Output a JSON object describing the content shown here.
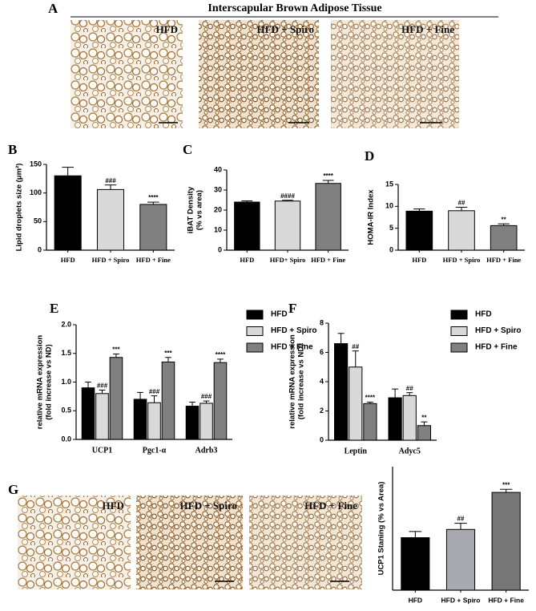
{
  "panel_a": {
    "letter": "A",
    "title": "Interscapular Brown Adipose Tissue",
    "images": [
      "HFD",
      "HFD + Spiro",
      "HFD + Fine"
    ]
  },
  "panel_g": {
    "letter": "G",
    "images": [
      "HFD",
      "HFD + Spiro",
      "HFD + Fine"
    ]
  },
  "chart_data": [
    {
      "type": "bar",
      "panel": "B",
      "ylabel": [
        "Lipid droplets size (μm²)"
      ],
      "categories": [
        "HFD",
        "HFD + Spiro",
        "HFD + Fine"
      ],
      "values": [
        130,
        106,
        80
      ],
      "errors": [
        15,
        8,
        4
      ],
      "colors": [
        "#000000",
        "#d9d9d9",
        "#808080"
      ],
      "significance": [
        null,
        "###",
        "****"
      ],
      "ylim": [
        0,
        150
      ],
      "yticks": [
        0,
        50,
        100,
        150
      ]
    },
    {
      "type": "bar",
      "panel": "C",
      "ylabel": [
        "iBAT Density",
        "(% vs area)"
      ],
      "categories": [
        "HFD",
        "HFD+ Spiro",
        "HFD + Fine"
      ],
      "values": [
        24,
        24.5,
        33.3
      ],
      "errors": [
        0.6,
        0.4,
        1.5
      ],
      "colors": [
        "#000000",
        "#d9d9d9",
        "#808080"
      ],
      "significance": [
        null,
        "####",
        "****"
      ],
      "ylim": [
        0,
        40
      ],
      "yticks": [
        0,
        10,
        20,
        30,
        40
      ]
    },
    {
      "type": "bar",
      "panel": "D",
      "ylabel": [
        "HOMA-IR Index"
      ],
      "categories": [
        "HFD",
        "HFD + Spiro",
        "HFD + Fine"
      ],
      "values": [
        8.9,
        9.0,
        5.6
      ],
      "errors": [
        0.5,
        0.8,
        0.4
      ],
      "colors": [
        "#000000",
        "#d9d9d9",
        "#808080"
      ],
      "significance": [
        null,
        "##",
        "**"
      ],
      "ylim": [
        0,
        15
      ],
      "yticks": [
        0,
        5,
        10,
        15
      ]
    },
    {
      "type": "grouped_bar",
      "panel": "E",
      "ylabel": [
        "relative mRNA expression",
        "(fold increase vs ND)"
      ],
      "categories": [
        "UCP1",
        "Pgc1-α",
        "Adrb3"
      ],
      "series": [
        {
          "name": "HFD",
          "color": "#000000",
          "values": [
            0.9,
            0.7,
            0.58
          ],
          "errors": [
            0.1,
            0.12,
            0.07
          ],
          "significance": [
            null,
            null,
            null
          ]
        },
        {
          "name": "HFD + Spiro",
          "color": "#d9d9d9",
          "values": [
            0.8,
            0.64,
            0.63
          ],
          "errors": [
            0.06,
            0.12,
            0.04
          ],
          "significance": [
            "###",
            "###",
            "###"
          ]
        },
        {
          "name": "HFD + Fine",
          "color": "#808080",
          "values": [
            1.43,
            1.35,
            1.34
          ],
          "errors": [
            0.06,
            0.08,
            0.06
          ],
          "significance": [
            "***",
            "***",
            "****"
          ]
        }
      ],
      "ylim": [
        0,
        2
      ],
      "yticks": [
        {
          "value": 0,
          "label": "0.0"
        },
        0.5,
        {
          "value": 1,
          "label": "1.0"
        },
        1.5,
        {
          "value": 2,
          "label": "2.0"
        }
      ]
    },
    {
      "type": "grouped_bar",
      "panel": "F",
      "ylabel": [
        "relative mRNA expression",
        "(fold increase vs ND)"
      ],
      "categories": [
        "Leptin",
        "Adyc5"
      ],
      "series": [
        {
          "name": "HFD",
          "color": "#000000",
          "values": [
            6.6,
            2.9
          ],
          "errors": [
            0.7,
            0.6
          ],
          "significance": [
            null,
            null
          ]
        },
        {
          "name": "HFD + Spiro",
          "color": "#d9d9d9",
          "values": [
            5.0,
            3.05
          ],
          "errors": [
            1.1,
            0.2
          ],
          "significance": [
            "##",
            "##"
          ]
        },
        {
          "name": "HFD + Fine",
          "color": "#808080",
          "values": [
            2.5,
            1.0
          ],
          "errors": [
            0.1,
            0.25
          ],
          "significance": [
            "****",
            "**"
          ]
        }
      ],
      "ylim": [
        0,
        8
      ],
      "yticks": [
        0,
        2,
        4,
        6,
        8
      ]
    },
    {
      "type": "bar",
      "ylabel": [
        "UCP1 Staning (% vs Area)"
      ],
      "categories": [
        "HFD",
        "HFD + Spiro",
        "HFD + Fine"
      ],
      "values": [
        25.5,
        29.5,
        47.5
      ],
      "errors": [
        3,
        3,
        1.5
      ],
      "colors": [
        "#000000",
        "#a9a9b1",
        "#767676"
      ],
      "significance": [
        null,
        "##",
        "***"
      ],
      "ylim": [
        0,
        60
      ]
    }
  ]
}
